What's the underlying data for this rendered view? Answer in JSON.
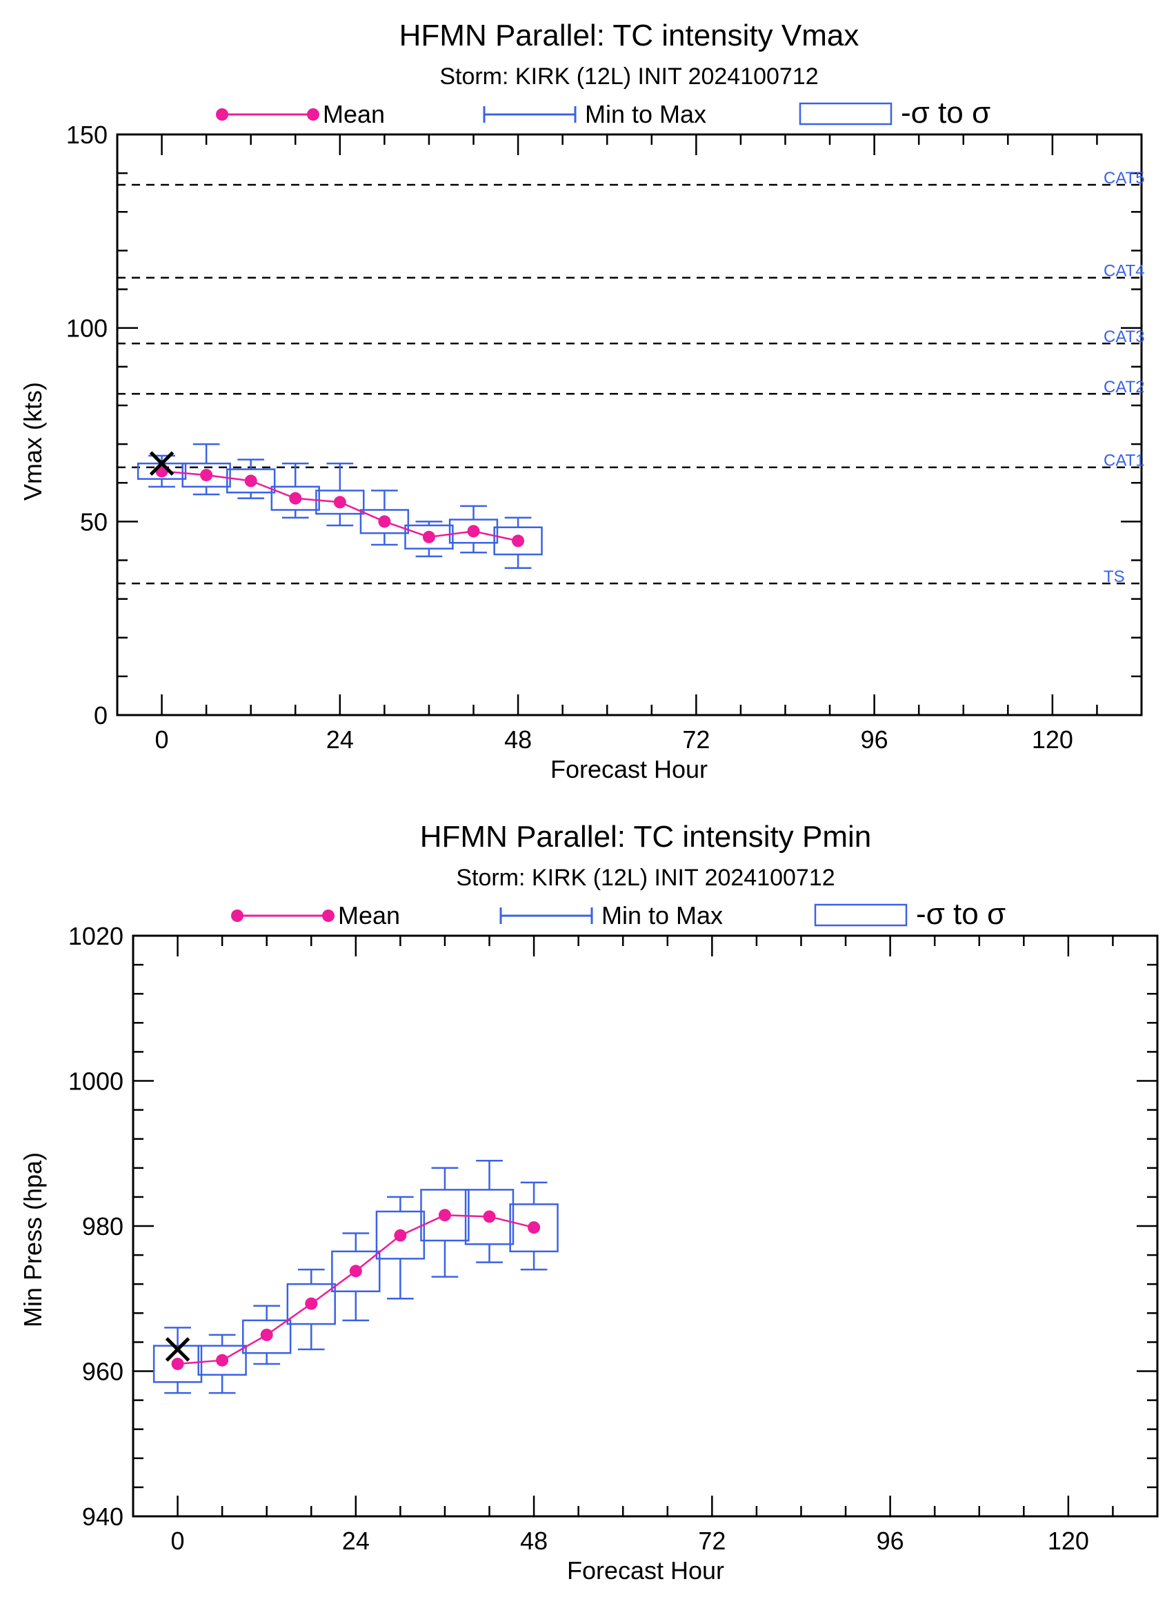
{
  "chart_data": [
    {
      "type": "box",
      "title": "HFMN Parallel: TC intensity Vmax",
      "subtitle": "Storm: KIRK (12L) INIT 2024100712",
      "xlabel": "Forecast Hour",
      "ylabel": "Vmax (kts)",
      "xlim": [
        -6,
        132
      ],
      "ylim": [
        0,
        150
      ],
      "xticks": [
        0,
        24,
        48,
        72,
        96,
        120
      ],
      "yticks": [
        0,
        50,
        100,
        150
      ],
      "xtick_labels": [
        "0",
        "24",
        "48",
        "72",
        "96",
        "120"
      ],
      "ytick_labels": [
        "0",
        "50",
        "100",
        "150"
      ],
      "grid": false,
      "legend": {
        "position": "top",
        "entries": [
          "Mean",
          "Min to Max",
          "-σ to σ"
        ]
      },
      "thresholds": [
        {
          "label": "CAT5",
          "value": 137
        },
        {
          "label": "CAT4",
          "value": 113
        },
        {
          "label": "CAT3",
          "value": 96
        },
        {
          "label": "CAT2",
          "value": 83
        },
        {
          "label": "CAT1",
          "value": 64
        },
        {
          "label": "TS",
          "value": 34
        }
      ],
      "observed": {
        "x": 0,
        "y": 65
      },
      "series": [
        {
          "name": "Mean",
          "x": [
            0,
            6,
            12,
            18,
            24,
            30,
            36,
            42,
            48
          ],
          "mean": [
            63,
            62,
            60.5,
            56,
            55,
            50,
            46,
            47.5,
            45
          ],
          "min": [
            59,
            57,
            56,
            51,
            49,
            44,
            41,
            42,
            38
          ],
          "max": [
            67,
            70,
            66,
            65,
            65,
            58,
            50,
            54,
            51
          ],
          "sd_low": [
            61,
            59,
            57.5,
            53,
            52,
            47,
            43,
            44.5,
            41.5
          ],
          "sd_high": [
            65,
            65,
            63.5,
            59,
            58,
            53,
            49,
            50.5,
            48.5
          ]
        }
      ]
    },
    {
      "type": "box",
      "title": "HFMN Parallel: TC intensity Pmin",
      "subtitle": "Storm: KIRK (12L) INIT 2024100712",
      "xlabel": "Forecast Hour",
      "ylabel": "Min Press (hpa)",
      "xlim": [
        -6,
        132
      ],
      "ylim": [
        940,
        1020
      ],
      "xticks": [
        0,
        24,
        48,
        72,
        96,
        120
      ],
      "yticks": [
        940,
        960,
        980,
        1000,
        1020
      ],
      "xtick_labels": [
        "0",
        "24",
        "48",
        "72",
        "96",
        "120"
      ],
      "ytick_labels": [
        "940",
        "960",
        "980",
        "1000",
        "1020"
      ],
      "grid": false,
      "legend": {
        "position": "top",
        "entries": [
          "Mean",
          "Min to Max",
          "-σ to σ"
        ]
      },
      "thresholds": [],
      "observed": {
        "x": 0,
        "y": 963
      },
      "series": [
        {
          "name": "Mean",
          "x": [
            0,
            6,
            12,
            18,
            24,
            30,
            36,
            42,
            48
          ],
          "mean": [
            961,
            961.5,
            965,
            969.3,
            973.8,
            978.7,
            981.5,
            981.3,
            979.8
          ],
          "min": [
            957,
            957,
            961,
            963,
            967,
            970,
            973,
            975,
            974
          ],
          "max": [
            966,
            965,
            969,
            974,
            979,
            984,
            988,
            989,
            986
          ],
          "sd_low": [
            958.5,
            959.5,
            962.5,
            966.5,
            971,
            975.5,
            978,
            977.5,
            976.5
          ],
          "sd_high": [
            963.5,
            963.5,
            967,
            972,
            976.5,
            982,
            985,
            985,
            983
          ]
        }
      ]
    }
  ],
  "colors": {
    "mean": "#ee1b9a",
    "box": "#3a62e6",
    "threshold_label": "#3a62e6",
    "axis": "#000000",
    "observed": "#000000"
  }
}
